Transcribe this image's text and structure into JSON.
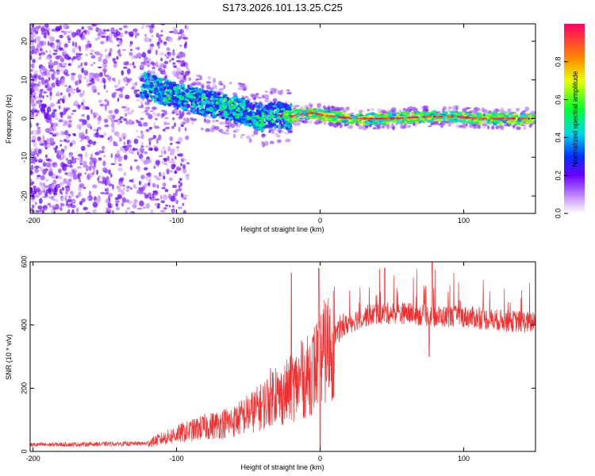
{
  "title": "S173.2026.101.13.25.C25",
  "colors": {
    "trace": "#ee3030",
    "frame": "#000000",
    "spec_core": "#e83a5c"
  },
  "chart_data": [
    {
      "type": "heatmap",
      "title": "S173.2026.101.13.25.C25",
      "xlabel": "Height of straight line (km)",
      "ylabel": "Frequency (Hz)",
      "xlim": [
        -202,
        150
      ],
      "ylim": [
        -24.5,
        24.5
      ],
      "xticks": [
        -200,
        -100,
        0,
        100
      ],
      "yticks": [
        -20,
        -10,
        0,
        10,
        20
      ],
      "ridge": {
        "x": [
          -125,
          -110,
          -95,
          -80,
          -65,
          -50,
          -40,
          -30,
          -22,
          -15,
          -5,
          0,
          10,
          25,
          50,
          75,
          95,
          110,
          130,
          150
        ],
        "freq": [
          9,
          7,
          5.5,
          4,
          3,
          1.5,
          0,
          1,
          0.5,
          1,
          1.5,
          1,
          0.5,
          0,
          0,
          0.5,
          0.5,
          0,
          0,
          0
        ]
      },
      "colorbar": {
        "label": "Normalized spectral amplitude",
        "range": [
          0,
          1
        ],
        "ticks": [
          "0.0",
          "0.2",
          "0.4",
          "0.6",
          "0.8"
        ],
        "tick_values": [
          0.0,
          0.2,
          0.4,
          0.6,
          0.8
        ]
      }
    },
    {
      "type": "line",
      "xlabel": "Height of straight line (km)",
      "ylabel": "SNR (10 * v/v)",
      "xlim": [
        -202,
        150
      ],
      "ylim": [
        0,
        600
      ],
      "xticks": [
        -200,
        -100,
        0,
        100
      ],
      "yticks": [
        0,
        200,
        400,
        600
      ],
      "series": [
        {
          "name": "SNR",
          "color": "#ee3030",
          "envelope_x": [
            -202,
            -120,
            -100,
            -80,
            -60,
            -40,
            -30,
            -20,
            -10,
            0,
            10,
            20,
            30,
            40,
            60,
            80,
            100,
            120,
            150
          ],
          "envelope_y": [
            18,
            22,
            45,
            65,
            80,
            120,
            165,
            200,
            230,
            290,
            360,
            400,
            420,
            430,
            430,
            420,
            420,
            410,
            400
          ],
          "spikes": [
            {
              "x": -20,
              "y": 565
            },
            {
              "x": -13,
              "y": 350
            },
            {
              "x": -1,
              "y": 580
            },
            {
              "x": 0,
              "y": 10
            },
            {
              "x": 45,
              "y": 580
            },
            {
              "x": 78,
              "y": 600
            },
            {
              "x": 76,
              "y": 300
            }
          ]
        }
      ]
    }
  ]
}
